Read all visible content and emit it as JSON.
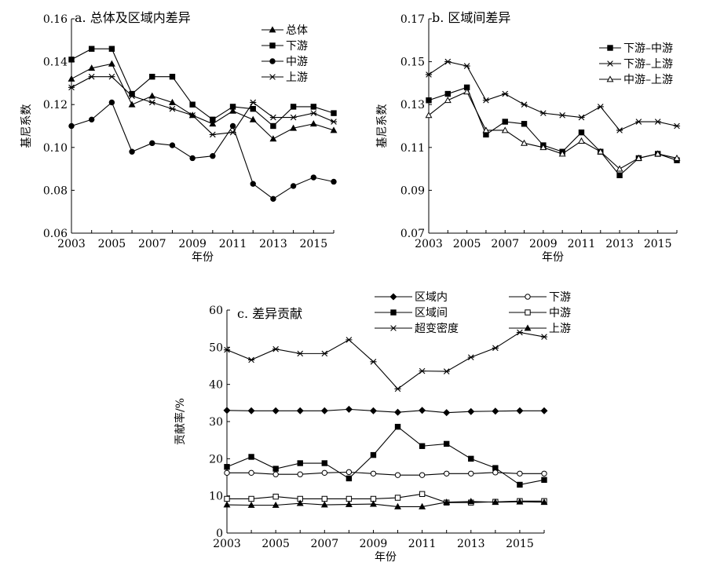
{
  "chart_data": [
    {
      "type": "line",
      "title": "a. 总体及区域内差异",
      "xlabel": "年份",
      "ylabel": "基尼系数",
      "xlim": [
        2003,
        2016
      ],
      "ylim": [
        0.06,
        0.16
      ],
      "xticks": [
        2003,
        2005,
        2007,
        2009,
        2011,
        2013,
        2015
      ],
      "yticks": [
        0.06,
        0.08,
        0.1,
        0.12,
        0.14,
        0.16
      ],
      "ytick_decimals": 2,
      "legend": "top-right",
      "x": [
        2003,
        2004,
        2005,
        2006,
        2007,
        2008,
        2009,
        2010,
        2011,
        2012,
        2013,
        2014,
        2015,
        2016
      ],
      "series": [
        {
          "name": "总体",
          "marker": "triangle",
          "values": [
            0.132,
            0.137,
            0.139,
            0.12,
            0.124,
            0.121,
            0.115,
            0.111,
            0.117,
            0.113,
            0.104,
            0.109,
            0.111,
            0.108
          ]
        },
        {
          "name": "下游",
          "marker": "square",
          "values": [
            0.141,
            0.146,
            0.146,
            0.125,
            0.133,
            0.133,
            0.12,
            0.113,
            0.119,
            0.118,
            0.11,
            0.119,
            0.119,
            0.116
          ]
        },
        {
          "name": "中游",
          "marker": "circle",
          "values": [
            0.11,
            0.113,
            0.121,
            0.098,
            0.102,
            0.101,
            0.095,
            0.096,
            0.11,
            0.083,
            0.076,
            0.082,
            0.086,
            0.084
          ]
        },
        {
          "name": "上游",
          "marker": "star",
          "values": [
            0.128,
            0.133,
            0.133,
            0.124,
            0.121,
            0.118,
            0.115,
            0.106,
            0.107,
            0.121,
            0.114,
            0.114,
            0.116,
            0.112
          ]
        }
      ]
    },
    {
      "type": "line",
      "title": "b. 区域间差异",
      "xlabel": "年份",
      "ylabel": "基尼系数",
      "xlim": [
        2003,
        2016
      ],
      "ylim": [
        0.07,
        0.17
      ],
      "xticks": [
        2003,
        2005,
        2007,
        2009,
        2011,
        2013,
        2015
      ],
      "yticks": [
        0.07,
        0.09,
        0.11,
        0.13,
        0.15,
        0.17
      ],
      "ytick_decimals": 2,
      "legend": "top-right",
      "x": [
        2003,
        2004,
        2005,
        2006,
        2007,
        2008,
        2009,
        2010,
        2011,
        2012,
        2013,
        2014,
        2015,
        2016
      ],
      "series": [
        {
          "name": "下游–中游",
          "marker": "square",
          "values": [
            0.132,
            0.135,
            0.138,
            0.116,
            0.122,
            0.121,
            0.111,
            0.108,
            0.117,
            0.108,
            0.097,
            0.105,
            0.107,
            0.104
          ]
        },
        {
          "name": "下游–上游",
          "marker": "star",
          "values": [
            0.144,
            0.15,
            0.148,
            0.132,
            0.135,
            0.13,
            0.126,
            0.125,
            0.124,
            0.129,
            0.118,
            0.122,
            0.122,
            0.12
          ]
        },
        {
          "name": "中游–上游",
          "marker": "triangle-open",
          "values": [
            0.125,
            0.132,
            0.136,
            0.118,
            0.118,
            0.112,
            0.11,
            0.107,
            0.113,
            0.108,
            0.1,
            0.105,
            0.107,
            0.105
          ]
        }
      ]
    },
    {
      "type": "line",
      "title": "c. 差异贡献",
      "xlabel": "年份",
      "ylabel": "贡献率/%",
      "xlim": [
        2003,
        2016
      ],
      "ylim": [
        0,
        60
      ],
      "xticks": [
        2003,
        2005,
        2007,
        2009,
        2011,
        2013,
        2015
      ],
      "yticks": [
        0,
        10,
        20,
        30,
        40,
        50,
        60
      ],
      "ytick_decimals": 0,
      "legend": "top",
      "x": [
        2003,
        2004,
        2005,
        2006,
        2007,
        2008,
        2009,
        2010,
        2011,
        2012,
        2013,
        2014,
        2015,
        2016
      ],
      "series": [
        {
          "name": "区域内",
          "marker": "diamond",
          "values": [
            33.0,
            32.9,
            32.9,
            32.9,
            32.9,
            33.3,
            32.9,
            32.5,
            33.0,
            32.4,
            32.7,
            32.8,
            32.9,
            32.9
          ]
        },
        {
          "name": "区域间",
          "marker": "square",
          "values": [
            17.8,
            20.5,
            17.3,
            18.8,
            18.8,
            14.7,
            21.0,
            28.6,
            23.4,
            24.0,
            20.0,
            17.5,
            13.0,
            14.3
          ]
        },
        {
          "name": "超变密度",
          "marker": "star",
          "values": [
            49.3,
            46.6,
            49.5,
            48.3,
            48.3,
            52.0,
            46.1,
            38.8,
            43.6,
            43.5,
            47.3,
            49.8,
            54.0,
            52.8
          ]
        },
        {
          "name": "下游",
          "marker": "circle-open",
          "values": [
            16.2,
            16.2,
            15.8,
            15.8,
            16.2,
            16.4,
            16.0,
            15.6,
            15.6,
            16.0,
            16.0,
            16.3,
            16.0,
            16.0
          ]
        },
        {
          "name": "中游",
          "marker": "square-open",
          "values": [
            9.2,
            9.2,
            9.8,
            9.2,
            9.2,
            9.2,
            9.2,
            9.5,
            10.5,
            8.2,
            8.2,
            8.4,
            8.6,
            8.6
          ]
        },
        {
          "name": "上游",
          "marker": "triangle",
          "values": [
            7.6,
            7.5,
            7.5,
            8.0,
            7.6,
            7.7,
            7.8,
            7.1,
            7.1,
            8.3,
            8.5,
            8.3,
            8.4,
            8.3
          ]
        }
      ]
    }
  ]
}
